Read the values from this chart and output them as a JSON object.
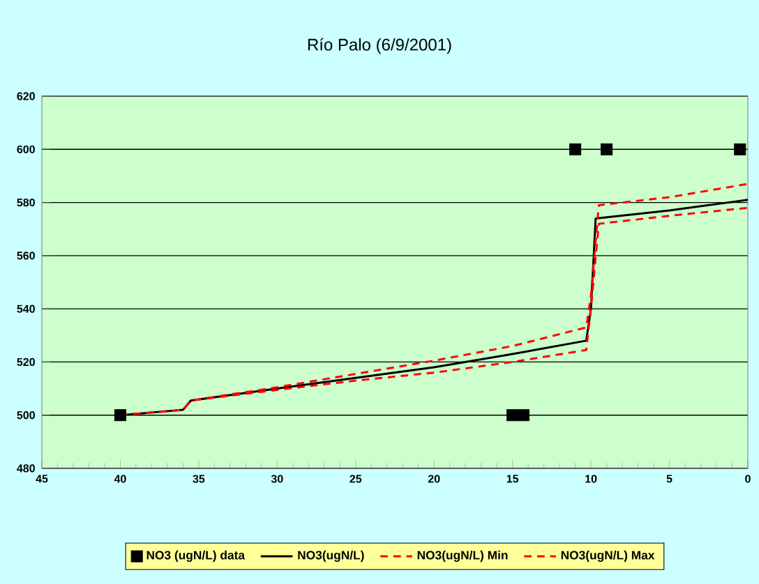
{
  "chart_data": {
    "type": "line",
    "title": "Río Palo (6/9/2001)",
    "xlim": [
      45,
      0
    ],
    "xticks": [
      45,
      40,
      35,
      30,
      25,
      20,
      15,
      10,
      5,
      0
    ],
    "ylim": [
      480,
      620
    ],
    "yticks": [
      480,
      500,
      520,
      540,
      560,
      580,
      600,
      620
    ],
    "grid": "y",
    "legend": "bottom",
    "series": [
      {
        "name": "NO3 (ugN/L) data",
        "type": "scatter",
        "marker": "square",
        "color": "#000000",
        "x": [
          40,
          15,
          14.3,
          11,
          9,
          0.5
        ],
        "values": [
          500,
          500,
          500,
          600,
          600,
          600
        ]
      },
      {
        "name": "NO3(ugN/L)",
        "line_style": "solid",
        "color": "#000000",
        "x": [
          40,
          36,
          35.5,
          30,
          25,
          20,
          15,
          10.3,
          10,
          9.7,
          5,
          0
        ],
        "values": [
          500,
          502,
          505.5,
          510,
          514,
          518,
          523,
          528,
          540,
          574,
          577,
          581
        ]
      },
      {
        "name": "NO3(ugN/L) Min",
        "line_style": "dashed",
        "color": "#ff0000",
        "x": [
          40,
          36,
          35.5,
          30,
          25,
          20,
          15,
          10.3,
          10,
          9.5,
          5,
          0
        ],
        "values": [
          500,
          502,
          505.5,
          509.5,
          513,
          516,
          520,
          524.5,
          540,
          572,
          575,
          578
        ]
      },
      {
        "name": "NO3(ugN/L) Max",
        "line_style": "dashed",
        "color": "#ff0000",
        "x": [
          40,
          36,
          35.5,
          30,
          25,
          20,
          15,
          10.3,
          10,
          9.5,
          5,
          0
        ],
        "values": [
          500,
          502,
          505.5,
          510.5,
          515.5,
          520.5,
          526,
          533,
          545,
          579,
          582,
          587
        ]
      }
    ]
  }
}
